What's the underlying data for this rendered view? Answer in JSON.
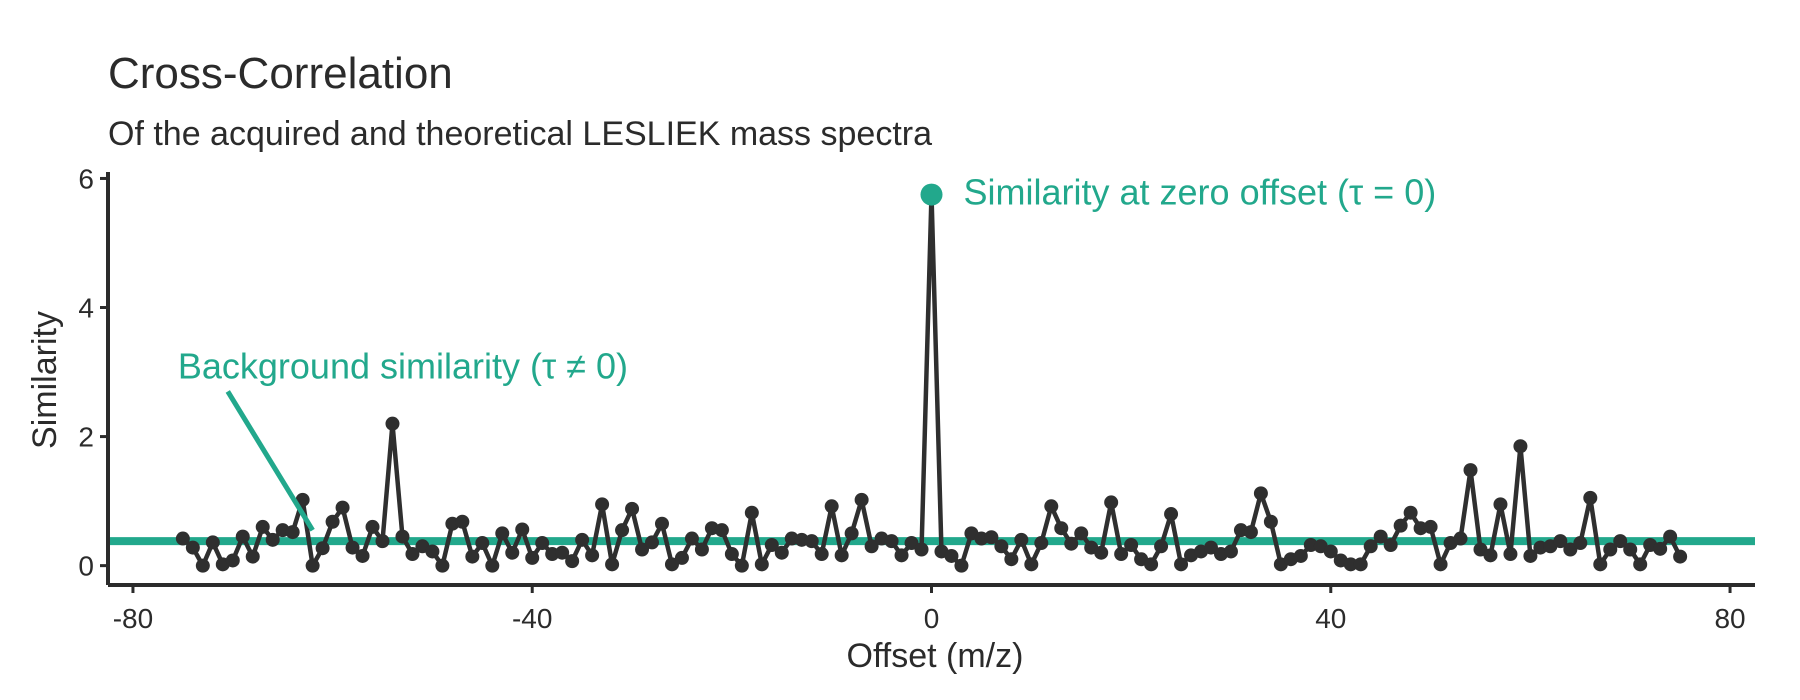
{
  "chart_data": {
    "type": "line",
    "title": "Cross-Correlation",
    "subtitle": "Of the acquired and theoretical LESLIEK mass spectra",
    "xlabel": "Offset (m/z)",
    "ylabel": "Similarity",
    "xlim": [
      -82.5,
      82.5
    ],
    "ylim": [
      -0.3,
      6.1
    ],
    "x_ticks": [
      -80,
      -40,
      0,
      40,
      80
    ],
    "x_tick_labels": [
      "-80",
      "-40",
      "0",
      "40",
      "80"
    ],
    "y_ticks": [
      0,
      2,
      4,
      6
    ],
    "y_tick_labels": [
      "0",
      "2",
      "4",
      "6"
    ],
    "grid": false,
    "line_color": "#2f2f2f",
    "accent_color": "#22a88c",
    "background_level": 0.38,
    "x": [
      -75,
      -74,
      -73,
      -72,
      -71,
      -70,
      -69,
      -68,
      -67,
      -66,
      -65,
      -64,
      -63,
      -62,
      -61,
      -60,
      -59,
      -58,
      -57,
      -56,
      -55,
      -54,
      -53,
      -52,
      -51,
      -50,
      -49,
      -48,
      -47,
      -46,
      -45,
      -44,
      -43,
      -42,
      -41,
      -40,
      -39,
      -38,
      -37,
      -36,
      -35,
      -34,
      -33,
      -32,
      -31,
      -30,
      -29,
      -28,
      -27,
      -26,
      -25,
      -24,
      -23,
      -22,
      -21,
      -20,
      -19,
      -18,
      -17,
      -16,
      -15,
      -14,
      -13,
      -12,
      -11,
      -10,
      -9,
      -8,
      -7,
      -6,
      -5,
      -4,
      -3,
      -2,
      -1,
      0,
      1,
      2,
      3,
      4,
      5,
      6,
      7,
      8,
      9,
      10,
      11,
      12,
      13,
      14,
      15,
      16,
      17,
      18,
      19,
      20,
      21,
      22,
      23,
      24,
      25,
      26,
      27,
      28,
      29,
      30,
      31,
      32,
      33,
      34,
      35,
      36,
      37,
      38,
      39,
      40,
      41,
      42,
      43,
      44,
      45,
      46,
      47,
      48,
      49,
      50,
      51,
      52,
      53,
      54,
      55,
      56,
      57,
      58,
      59,
      60,
      61,
      62,
      63,
      64,
      65,
      66,
      67,
      68,
      69,
      70,
      71,
      72,
      73,
      74,
      75
    ],
    "y": [
      0.42,
      0.28,
      0.0,
      0.36,
      0.02,
      0.08,
      0.45,
      0.14,
      0.6,
      0.4,
      0.55,
      0.52,
      1.02,
      0.0,
      0.27,
      0.68,
      0.9,
      0.28,
      0.15,
      0.6,
      0.38,
      2.2,
      0.45,
      0.18,
      0.3,
      0.22,
      0.0,
      0.65,
      0.68,
      0.14,
      0.35,
      0.0,
      0.5,
      0.2,
      0.56,
      0.12,
      0.35,
      0.18,
      0.2,
      0.07,
      0.4,
      0.16,
      0.95,
      0.02,
      0.55,
      0.88,
      0.25,
      0.36,
      0.65,
      0.02,
      0.12,
      0.42,
      0.25,
      0.58,
      0.55,
      0.18,
      0.0,
      0.82,
      0.02,
      0.32,
      0.2,
      0.42,
      0.4,
      0.38,
      0.18,
      0.92,
      0.16,
      0.5,
      1.02,
      0.3,
      0.42,
      0.38,
      0.16,
      0.35,
      0.25,
      5.75,
      0.22,
      0.15,
      0.0,
      0.5,
      0.42,
      0.44,
      0.3,
      0.1,
      0.4,
      0.02,
      0.35,
      0.92,
      0.58,
      0.34,
      0.5,
      0.28,
      0.2,
      0.98,
      0.18,
      0.32,
      0.1,
      0.02,
      0.3,
      0.8,
      0.02,
      0.16,
      0.22,
      0.28,
      0.18,
      0.22,
      0.55,
      0.52,
      1.12,
      0.68,
      0.02,
      0.1,
      0.15,
      0.32,
      0.3,
      0.22,
      0.08,
      0.02,
      0.02,
      0.3,
      0.45,
      0.32,
      0.62,
      0.82,
      0.58,
      0.6,
      0.02,
      0.35,
      0.42,
      1.48,
      0.25,
      0.16,
      0.95,
      0.18,
      1.85,
      0.15,
      0.28,
      0.3,
      0.38,
      0.25,
      0.35,
      1.05,
      0.02,
      0.25,
      0.38,
      0.25,
      0.02,
      0.32,
      0.26,
      0.45,
      0.14
    ]
  },
  "annotations": {
    "peak": "Similarity at zero offset (τ = 0)",
    "background": "Background similarity (τ ≠ 0)"
  }
}
